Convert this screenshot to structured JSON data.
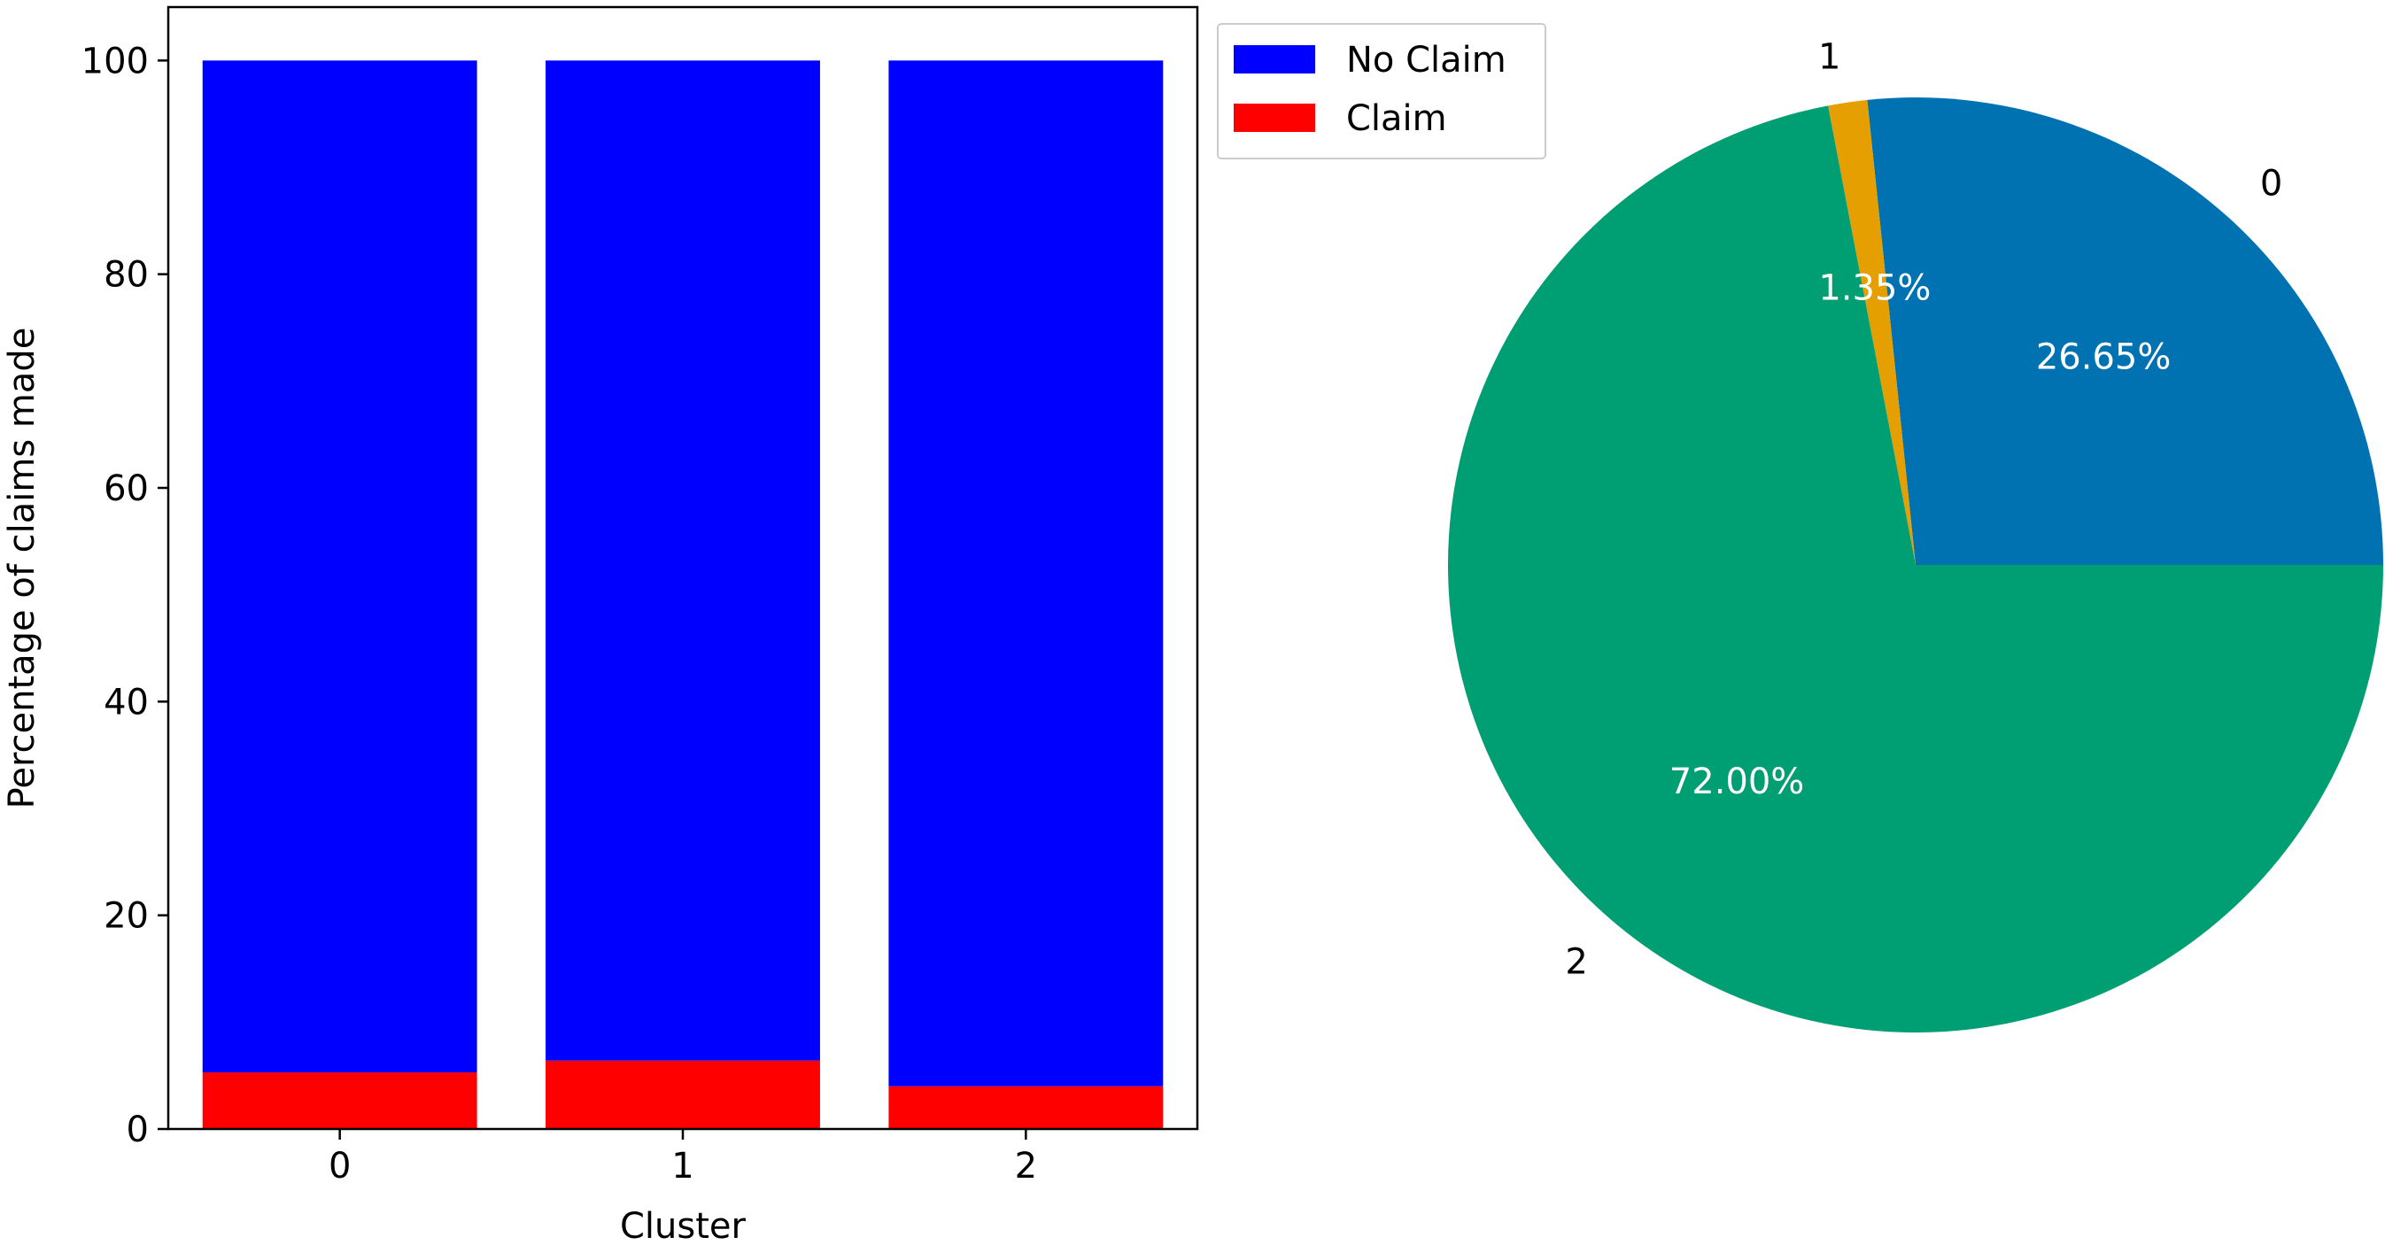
{
  "chart_data": [
    {
      "type": "bar",
      "stacked": true,
      "categories": [
        "0",
        "1",
        "2"
      ],
      "series": [
        {
          "name": "Claim",
          "values": [
            5.3,
            6.4,
            4.0
          ],
          "color": "#ff0000"
        },
        {
          "name": "No Claim",
          "values": [
            94.7,
            93.6,
            96.0
          ],
          "color": "#0000ff"
        }
      ],
      "title": "",
      "xlabel": "Cluster",
      "ylabel": "Percentage of claims made",
      "ylim": [
        0,
        105
      ],
      "yticks": [
        "0",
        "20",
        "40",
        "60",
        "80",
        "100"
      ],
      "grid": false,
      "legend": {
        "placement": "outside-top-right",
        "entries": [
          {
            "label": "No Claim",
            "color": "#0000ff"
          },
          {
            "label": "Claim",
            "color": "#ff0000"
          }
        ]
      }
    },
    {
      "type": "pie",
      "categories": [
        "0",
        "1",
        "2"
      ],
      "values": [
        26.65,
        1.35,
        72.0
      ],
      "value_labels": [
        "26.65%",
        "1.35%",
        "72.00%"
      ],
      "colors": [
        "#0072b2",
        "#e69f00",
        "#009e73"
      ],
      "start_angle_deg": 0,
      "direction": "counterclockwise",
      "title": ""
    }
  ]
}
